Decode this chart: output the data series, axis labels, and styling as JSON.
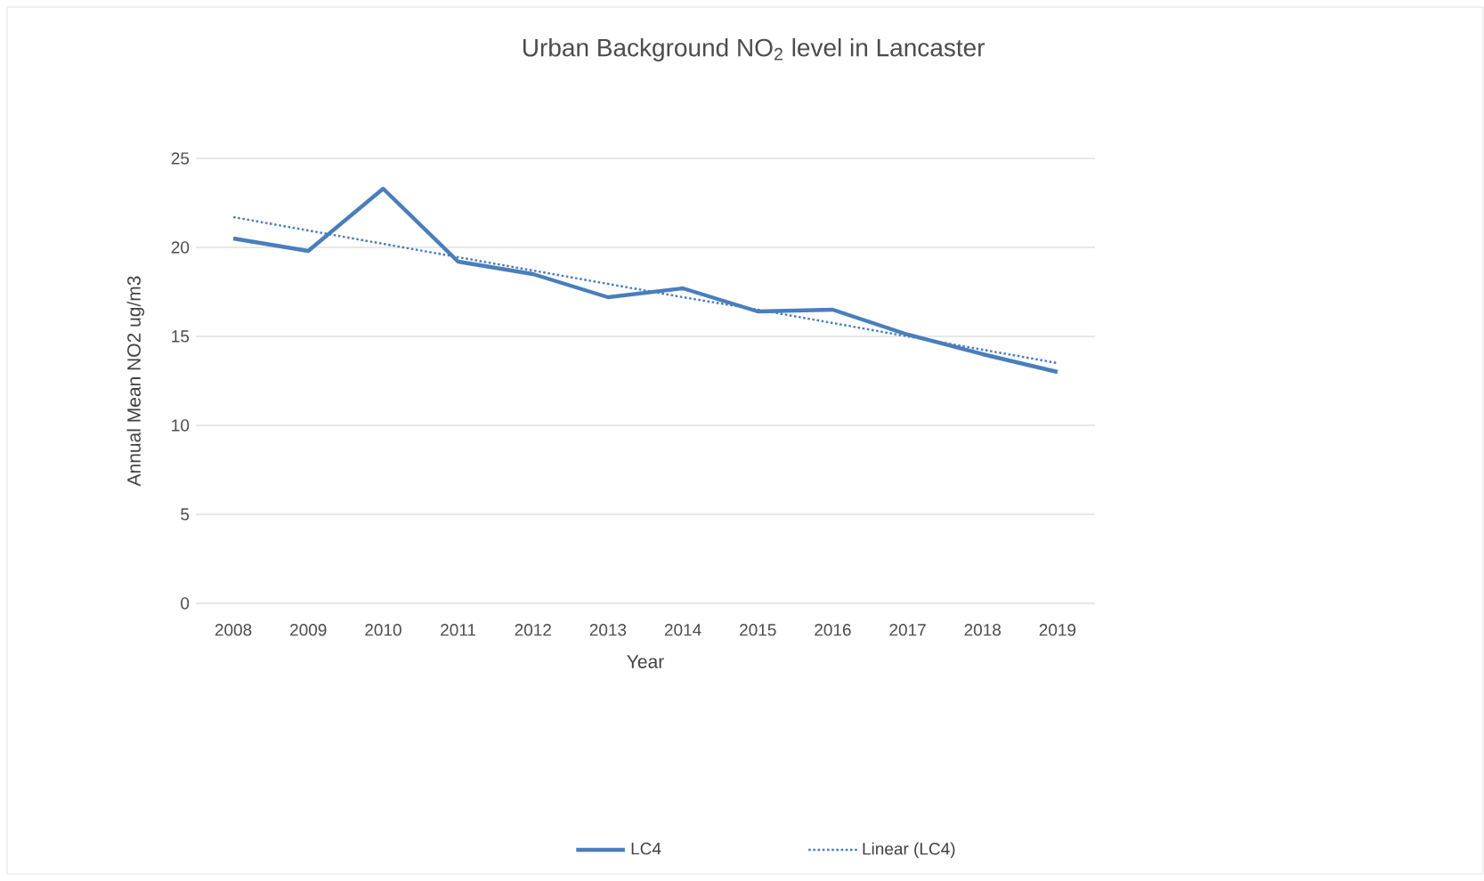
{
  "chart_data": {
    "type": "line",
    "title": "Urban Background  NO$_{2}$ level in Lancaster",
    "xlabel": "Year",
    "ylabel": "Annual Mean NO2 ug/m3",
    "categories": [
      "2008",
      "2009",
      "2010",
      "2011",
      "2012",
      "2013",
      "2014",
      "2015",
      "2016",
      "2017",
      "2018",
      "2019"
    ],
    "series": [
      {
        "name": "LC4",
        "color": "#4a7ebb",
        "values": [
          20.5,
          19.8,
          23.3,
          19.2,
          18.5,
          17.2,
          17.7,
          16.4,
          16.5,
          15.1,
          14.0,
          13.0
        ]
      },
      {
        "name": "Linear (LC4)",
        "type": "line",
        "color": "#4a7ebb",
        "line_style": "dotted",
        "values": [
          21.7,
          20.95,
          20.2,
          19.45,
          18.7,
          17.95,
          17.2,
          16.5,
          15.75,
          15.0,
          14.25,
          13.5
        ]
      }
    ],
    "ylim": [
      0,
      25
    ],
    "yticks": [
      0,
      5,
      10,
      15,
      20,
      25
    ],
    "grid": "y",
    "legend": "bottom"
  }
}
